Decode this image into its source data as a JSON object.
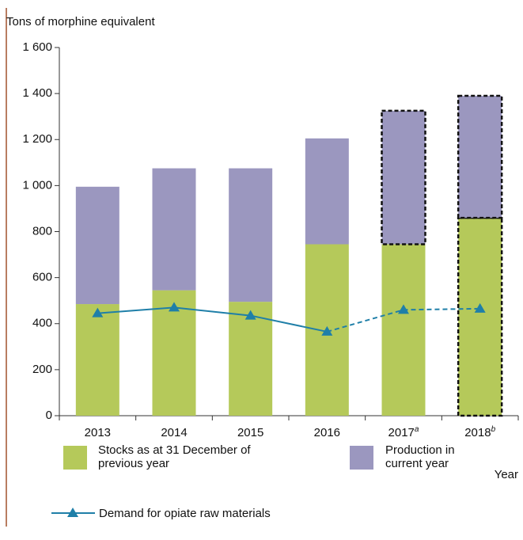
{
  "chart_data": {
    "type": "stacked-bar-line",
    "y_axis_label": "Tons of morphine equivalent",
    "x_axis_label": "Year",
    "categories": [
      "2013",
      "2014",
      "2015",
      "2016",
      "2017",
      "2018"
    ],
    "category_notes": [
      null,
      null,
      null,
      null,
      "a",
      "b"
    ],
    "ylim": [
      0,
      1600
    ],
    "yticks": [
      0,
      200,
      400,
      600,
      800,
      {
        "value": 1000,
        "label": "1 000"
      },
      {
        "value": 1200,
        "label": "1 200"
      },
      {
        "value": 1400,
        "label": "1 400"
      },
      {
        "value": 1600,
        "label": "1 600"
      }
    ],
    "series": [
      {
        "name": "Stocks as at 31 December of previous year",
        "color": "#b5c95a",
        "kind": "bar",
        "values": [
          485,
          545,
          495,
          745,
          745,
          860
        ],
        "outlined": [
          false,
          false,
          false,
          false,
          false,
          true
        ]
      },
      {
        "name": "Production in current year",
        "color": "#9b97bf",
        "kind": "bar",
        "values": [
          510,
          530,
          580,
          460,
          580,
          530
        ],
        "outlined": [
          false,
          false,
          false,
          false,
          true,
          true
        ]
      },
      {
        "name": "Demand for opiate raw materials",
        "color": "#1f7fa8",
        "kind": "line",
        "values": [
          445,
          470,
          435,
          365,
          460,
          465
        ],
        "dashed": [
          false,
          false,
          false,
          false,
          true,
          true
        ]
      }
    ]
  }
}
